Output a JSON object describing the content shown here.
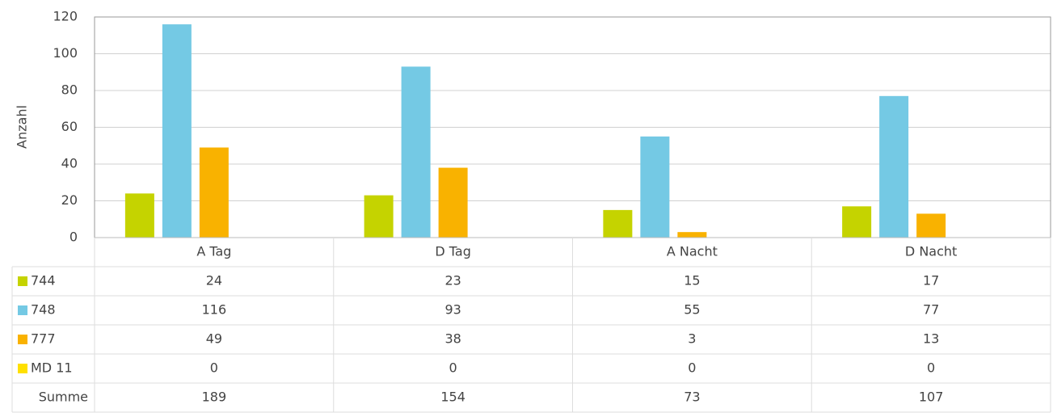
{
  "chart_data": {
    "type": "bar",
    "y_label": "Anzahl",
    "categories": [
      "A Tag",
      "D Tag",
      "A Nacht",
      "D Nacht"
    ],
    "series": [
      {
        "name": "744",
        "color": "#c5d300",
        "values": [
          24,
          23,
          15,
          17
        ]
      },
      {
        "name": "748",
        "color": "#74c9e4",
        "values": [
          116,
          93,
          55,
          77
        ]
      },
      {
        "name": "777",
        "color": "#f9b200",
        "values": [
          49,
          38,
          3,
          13
        ]
      },
      {
        "name": "MD 11",
        "color": "#ffe000",
        "values": [
          0,
          0,
          0,
          0
        ]
      }
    ],
    "ylim": [
      0,
      120
    ],
    "yticks": [
      0,
      20,
      40,
      60,
      80,
      100,
      120
    ],
    "grid": true,
    "data_table": {
      "total_label": "Summe",
      "totals": [
        189,
        154,
        73,
        107
      ]
    }
  }
}
